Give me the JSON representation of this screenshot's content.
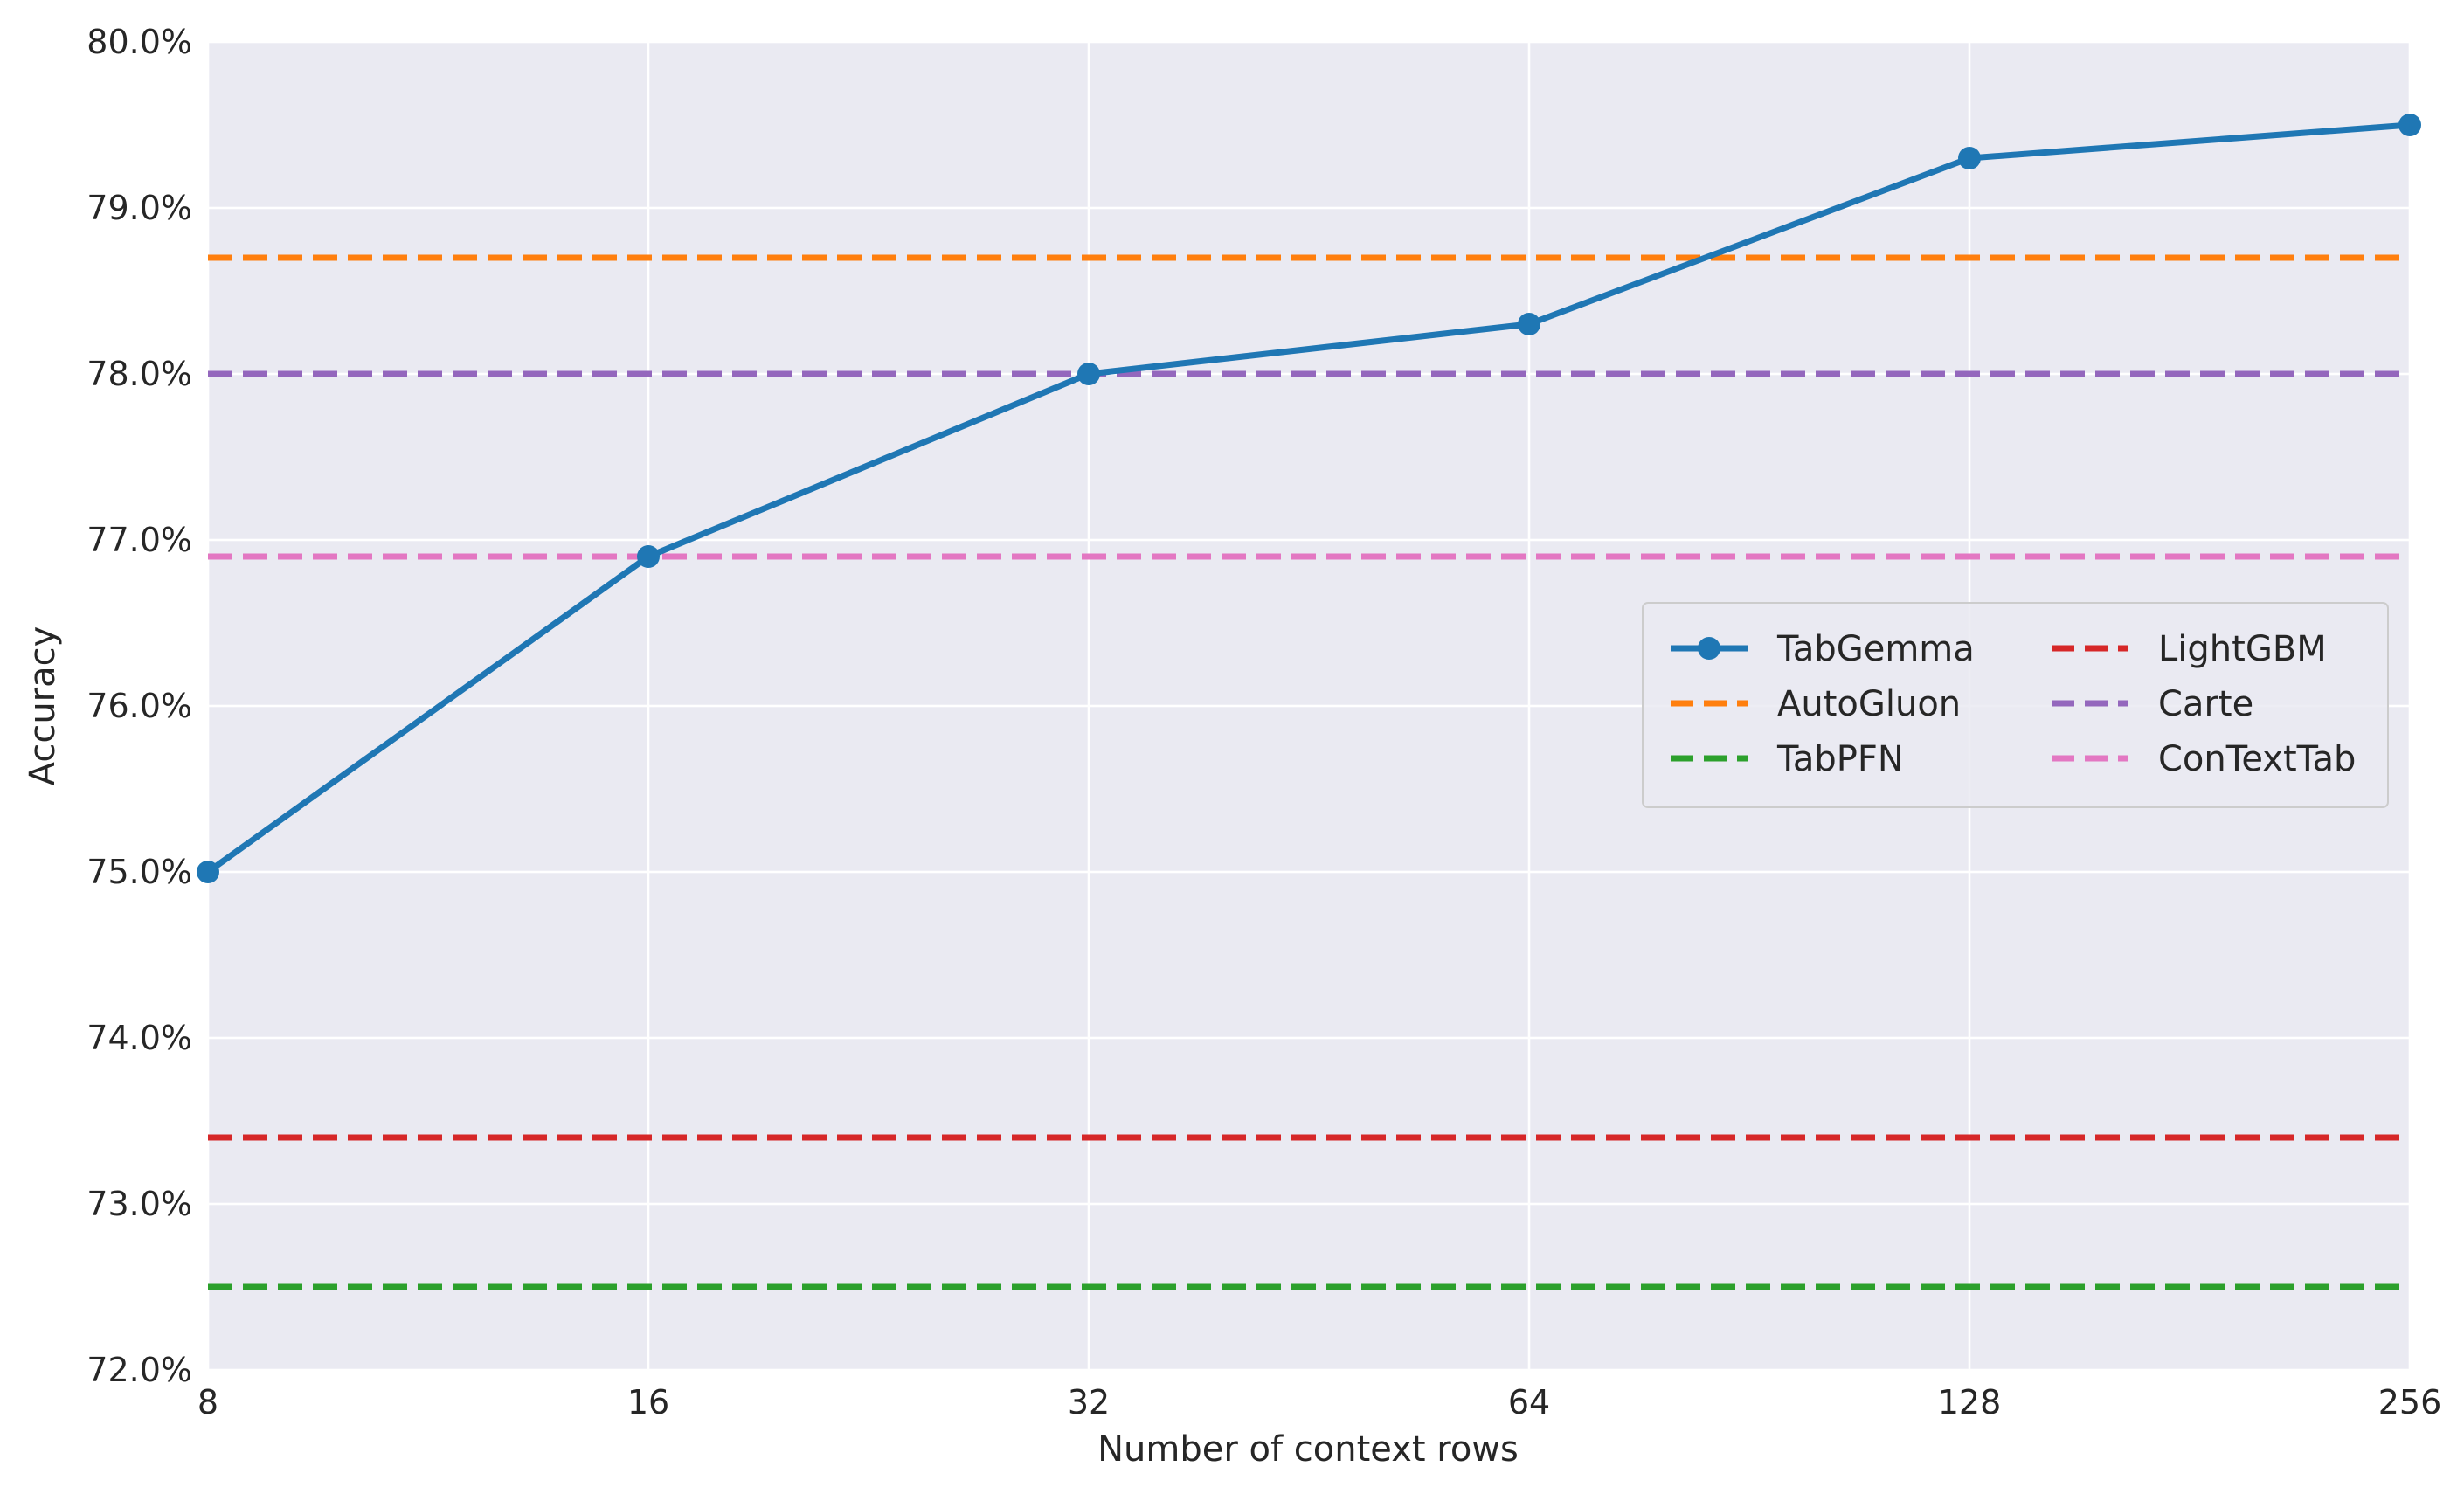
{
  "chart_data": {
    "type": "line",
    "title": "",
    "xlabel": "Number of context rows",
    "ylabel": "Accuracy",
    "x_scale": "log2",
    "x": [
      8,
      16,
      32,
      64,
      128,
      256
    ],
    "x_tick_labels": [
      "8",
      "16",
      "32",
      "64",
      "128",
      "256"
    ],
    "xlim": [
      8,
      256
    ],
    "ylim": [
      72.0,
      80.0
    ],
    "y_ticks": [
      72,
      73,
      74,
      75,
      76,
      77,
      78,
      79,
      80
    ],
    "y_tick_labels": [
      "72.0%",
      "73.0%",
      "74.0%",
      "75.0%",
      "76.0%",
      "77.0%",
      "78.0%",
      "79.0%",
      "80.0%"
    ],
    "grid": true,
    "legend_position": "center-right",
    "series": [
      {
        "name": "TabGemma",
        "style": "solid-markers",
        "color": "#1f77b4",
        "values": [
          75.0,
          76.9,
          78.0,
          78.3,
          79.3,
          79.5
        ]
      },
      {
        "name": "AutoGluon",
        "style": "dashed",
        "color": "#ff7f0e",
        "value": 78.7
      },
      {
        "name": "TabPFN",
        "style": "dashed",
        "color": "#2ca02c",
        "value": 72.5
      },
      {
        "name": "LightGBM",
        "style": "dashed",
        "color": "#d62728",
        "value": 73.4
      },
      {
        "name": "Carte",
        "style": "dashed",
        "color": "#9467bd",
        "value": 78.0
      },
      {
        "name": "ConTextTab",
        "style": "dashed",
        "color": "#e377c2",
        "value": 76.9
      }
    ]
  }
}
